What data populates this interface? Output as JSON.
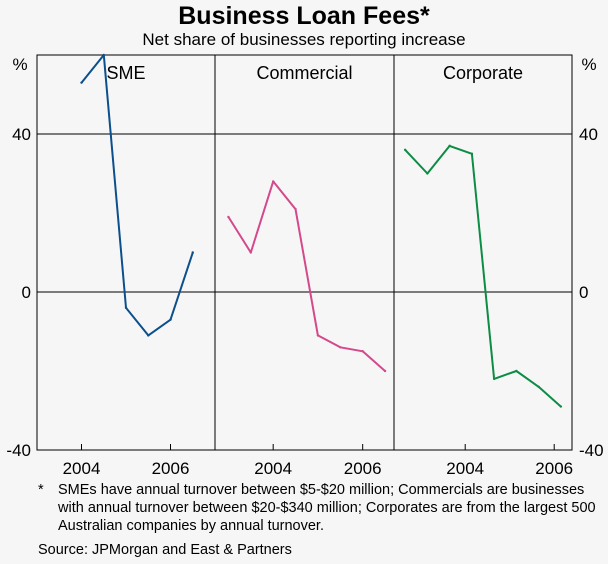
{
  "title": "Business Loan Fees*",
  "subtitle": "Net share of businesses reporting increase",
  "footnote": {
    "marker": "*",
    "text": "SMEs have annual turnover between $5-$20 million; Commercials are businesses with annual turnover between $20-$340 million; Corporates are from the largest 500 Australian companies by annual turnover."
  },
  "source": "Source: JPMorgan and East & Partners",
  "chart_data": {
    "type": "line",
    "unit_left": "%",
    "unit_right": "%",
    "ylim": [
      -40,
      60
    ],
    "yticks": [
      -40,
      0,
      40
    ],
    "ytick_labels": [
      "-40",
      "0",
      "40"
    ],
    "grid": true,
    "panels": [
      {
        "name": "SME",
        "color": "#0b4f8c",
        "xlim": [
          2003.0,
          2007.0
        ],
        "xticks": [
          2004,
          2006
        ],
        "xtick_labels": [
          "2004",
          "2006"
        ],
        "x": [
          2004.0,
          2004.5,
          2005.0,
          2005.5,
          2006.0,
          2006.5
        ],
        "y": [
          53,
          60,
          -4,
          -11,
          -7,
          10
        ]
      },
      {
        "name": "Commercial",
        "color": "#d4488c",
        "xlim": [
          2002.7,
          2006.7
        ],
        "xticks": [
          2004,
          2006
        ],
        "xtick_labels": [
          "2004",
          "2006"
        ],
        "x": [
          2003.0,
          2003.5,
          2004.0,
          2004.5,
          2005.0,
          2005.5,
          2006.0,
          2006.5
        ],
        "y": [
          19,
          10,
          28,
          21,
          -11,
          -14,
          -15,
          -20
        ]
      },
      {
        "name": "Corporate",
        "color": "#0c8c44",
        "xlim": [
          2002.4,
          2006.4
        ],
        "xticks": [
          2004,
          2006
        ],
        "xtick_labels": [
          "2004",
          "2006"
        ],
        "x": [
          2002.65,
          2003.15,
          2003.65,
          2004.15,
          2004.65,
          2005.15,
          2005.65,
          2006.15
        ],
        "y": [
          36,
          30,
          37,
          35,
          -22,
          -20,
          -24,
          -29
        ]
      }
    ]
  }
}
